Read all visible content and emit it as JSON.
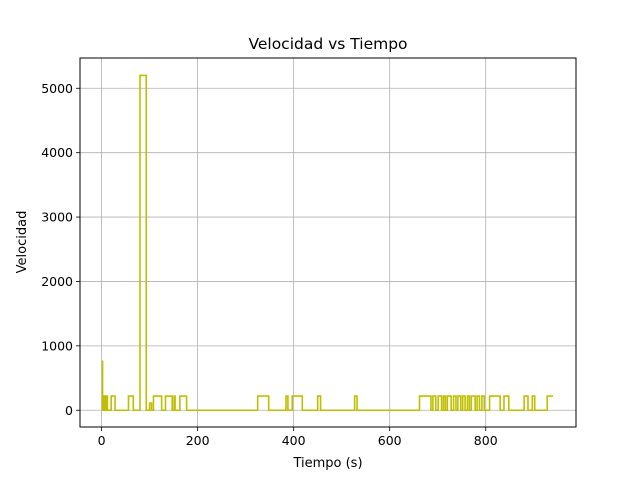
{
  "chart_data": {
    "type": "line",
    "title": "Velocidad vs Tiempo",
    "xlabel": "Tiempo (s)",
    "ylabel": "Velocidad",
    "xlim": [
      -45,
      988
    ],
    "ylim": [
      -260,
      5470
    ],
    "xticks": [
      0,
      200,
      400,
      600,
      800
    ],
    "yticks": [
      0,
      1000,
      2000,
      3000,
      4000,
      5000
    ],
    "grid": true,
    "series": [
      {
        "color": "#bfbf00",
        "x": [
          0,
          2,
          2,
          3,
          3,
          4,
          4,
          6,
          6,
          8,
          8,
          10,
          10,
          12,
          12,
          20,
          20,
          28,
          28,
          56,
          56,
          66,
          66,
          80,
          80,
          93,
          93,
          100,
          100,
          104,
          104,
          108,
          108,
          125,
          125,
          133,
          133,
          147,
          147,
          151,
          151,
          153,
          153,
          163,
          163,
          177,
          177,
          325,
          325,
          348,
          348,
          384,
          384,
          388,
          388,
          397,
          397,
          418,
          418,
          450,
          450,
          456,
          456,
          527,
          527,
          532,
          532,
          662,
          662,
          686,
          686,
          690,
          690,
          696,
          696,
          701,
          701,
          708,
          708,
          712,
          712,
          716,
          716,
          720,
          720,
          728,
          728,
          733,
          733,
          738,
          738,
          742,
          742,
          748,
          748,
          752,
          752,
          757,
          757,
          762,
          762,
          766,
          766,
          770,
          770,
          778,
          778,
          782,
          782,
          787,
          787,
          792,
          792,
          797,
          797,
          808,
          808,
          830,
          830,
          838,
          838,
          848,
          848,
          880,
          880,
          888,
          888,
          897,
          897,
          902,
          902,
          928,
          928,
          940
        ],
        "y": [
          760,
          760,
          0,
          0,
          220,
          220,
          0,
          0,
          220,
          220,
          0,
          0,
          220,
          220,
          0,
          0,
          220,
          220,
          0,
          0,
          220,
          220,
          0,
          0,
          5200,
          5200,
          0,
          0,
          110,
          110,
          0,
          0,
          220,
          220,
          0,
          0,
          220,
          220,
          0,
          0,
          220,
          220,
          0,
          0,
          220,
          220,
          0,
          0,
          220,
          220,
          0,
          0,
          220,
          220,
          0,
          0,
          220,
          220,
          0,
          0,
          220,
          220,
          0,
          0,
          220,
          220,
          0,
          0,
          220,
          220,
          0,
          0,
          220,
          220,
          0,
          0,
          220,
          220,
          0,
          0,
          220,
          220,
          0,
          0,
          220,
          220,
          0,
          0,
          220,
          220,
          0,
          0,
          220,
          220,
          0,
          0,
          220,
          220,
          0,
          0,
          220,
          220,
          0,
          0,
          220,
          220,
          0,
          0,
          220,
          220,
          0,
          0,
          220,
          220,
          0,
          0,
          220,
          220,
          0,
          0,
          220,
          220,
          0,
          0,
          220,
          220,
          0,
          0,
          220,
          220,
          0,
          0,
          220,
          220
        ]
      }
    ]
  }
}
